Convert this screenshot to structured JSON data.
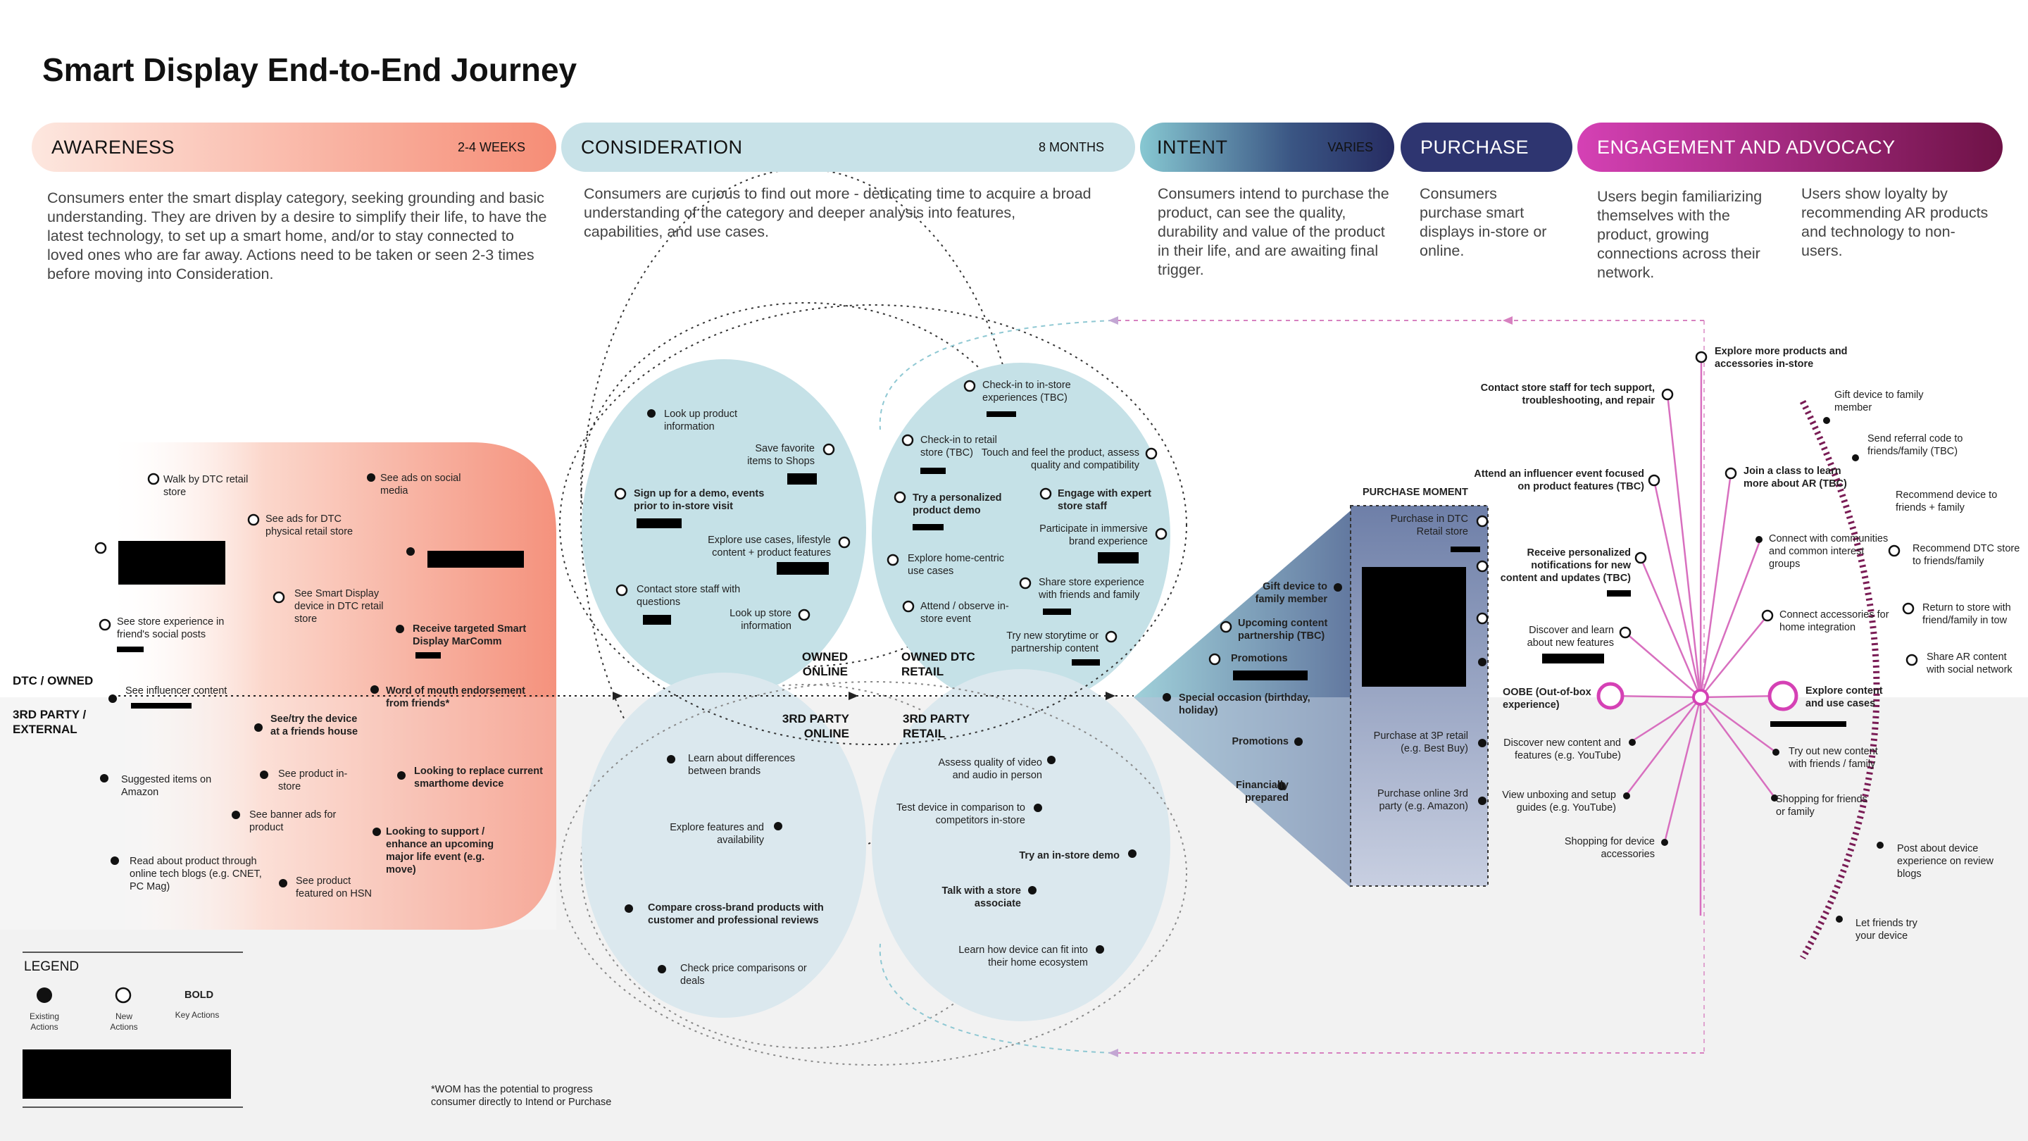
{
  "title": "Smart Display End-to-End Journey",
  "stages": {
    "awareness": {
      "name": "AWARENESS",
      "duration": "2-4 WEEKS",
      "desc": "Consumers enter the smart display category, seeking grounding and basic understanding. They are driven by a desire to simplify their life, to have the latest technology, to set up a smart home, and/or to stay connected to loved ones who are far away. Actions need to be taken or seen 2-3 times before moving into Consideration."
    },
    "consideration": {
      "name": "CONSIDERATION",
      "duration": "8 MONTHS",
      "desc": "Consumers are curious to find out more - dedicating time to acquire a broad understanding of the category and deeper analysis into features, capabilities, and use cases."
    },
    "intent": {
      "name": "INTENT",
      "duration": "VARIES",
      "desc": "Consumers intend to purchase the product, can see the quality, durability and value of the product in their life, and are awaiting final trigger."
    },
    "purchase": {
      "name": "PURCHASE",
      "desc": "Consumers purchase smart displays in-store or online."
    },
    "engagement": {
      "name": "ENGAGEMENT AND ADVOCACY",
      "desc_a": "Users begin familiarizing themselves with the product, growing connections across their network.",
      "desc_b": "Users show loyalty by recommending AR products and technology to non-users."
    }
  },
  "rows": {
    "dtc": "DTC / OWNED",
    "third": "3RD PARTY / EXTERNAL"
  },
  "quadrants": {
    "owned_online": "OWNED ONLINE",
    "owned_retail": "OWNED DTC RETAIL",
    "third_online": "3RD PARTY ONLINE",
    "third_retail": "3RD PARTY RETAIL"
  },
  "purchase_moment": "PURCHASE MOMENT",
  "awareness_actions": [
    "Walk by DTC retail store",
    "See ads on social media",
    "See ads for DTC physical retail store",
    "See Smart Display device in DTC retail store",
    "See store experience in friend's social posts",
    "Receive targeted Smart Display MarComm",
    "See influencer content",
    "Word of mouth endorsement from friends*",
    "See/try the device at a friends house",
    "Suggested items on Amazon",
    "See product in-store",
    "Looking to replace current smarthome device",
    "See banner ads for product",
    "Looking to support / enhance an upcoming major life event (e.g. move)",
    "Read about product through online tech blogs (e.g. CNET, PC Mag)",
    "See product featured on HSN"
  ],
  "owned_online_actions": [
    "Look up product information",
    "Save favorite items to Shops",
    "Sign up for a demo, events prior to in-store visit",
    "Explore use cases, lifestyle content + product features",
    "Contact store staff with questions",
    "Look up store information"
  ],
  "owned_retail_actions": [
    "Check-in to in-store experiences (TBC)",
    "Check-in to retail store (TBC)",
    "Touch and feel the product, assess quality and compatibility",
    "Try a personalized product demo",
    "Engage with expert store staff",
    "Participate in immersive brand experience",
    "Explore home-centric use cases",
    "Share store experience with friends and family",
    "Attend / observe in-store event",
    "Try new storytime or partnership content"
  ],
  "third_online_actions": [
    "Learn about differences between brands",
    "Explore features and availability",
    "Compare cross-brand products with customer and professional reviews",
    "Check price comparisons or deals"
  ],
  "third_retail_actions": [
    "Assess quality of video and audio in person",
    "Test device in comparison to competitors in-store",
    "Try an in-store demo",
    "Talk with a store associate",
    "Learn how device can fit into their home ecosystem"
  ],
  "intent_actions": [
    "Gift device to family member",
    "Upcoming content partnership (TBC)",
    "Promotions",
    "Special occasion (birthday, holiday)",
    "Promotions",
    "Financially prepared"
  ],
  "purchase_actions": [
    "Purchase in DTC Retail store",
    "Purchase at 3P retail (e.g. Best Buy)",
    "Purchase online 3rd party (e.g. Amazon)"
  ],
  "engagement_actions": [
    "Explore more products and accessories in-store",
    "Contact store staff for tech support, troubleshooting, and repair",
    "Attend an influencer event focused on product features (TBC)",
    "Join a class to learn more about AR (TBC)",
    "Receive personalized notifications for new content and updates (TBC)",
    "Connect with communities and common interest groups",
    "Discover and learn about new features",
    "Connect accessories for home integration",
    "OOBE (Out-of-box experience)",
    "Explore content and use cases",
    "Discover new content and features (e.g. YouTube)",
    "Try out new content with friends / family",
    "View unboxing and setup guides (e.g. YouTube)",
    "Shopping for friends or family",
    "Shopping for device accessories"
  ],
  "advocacy_actions": [
    "Gift device to family member",
    "Send referral code to friends/family (TBC)",
    "Recommend device to friends + family",
    "Recommend DTC store to friends/family",
    "Return to store with friend/family in tow",
    "Share AR content with social network",
    "Post about device experience on review blogs",
    "Let friends try your device"
  ],
  "legend": {
    "title": "LEGEND",
    "existing": "Existing Actions",
    "new": "New Actions",
    "bold": "BOLD",
    "key": "Key Actions"
  },
  "footnote": "*WOM has the potential to progress consumer directly to Intend or Purchase",
  "colors": {
    "awareness": "#f5907a",
    "consideration": "#c7e2e8",
    "intent": "#2f4a7a",
    "purchase": "#2e3570",
    "engagement": "#c93aa8"
  }
}
